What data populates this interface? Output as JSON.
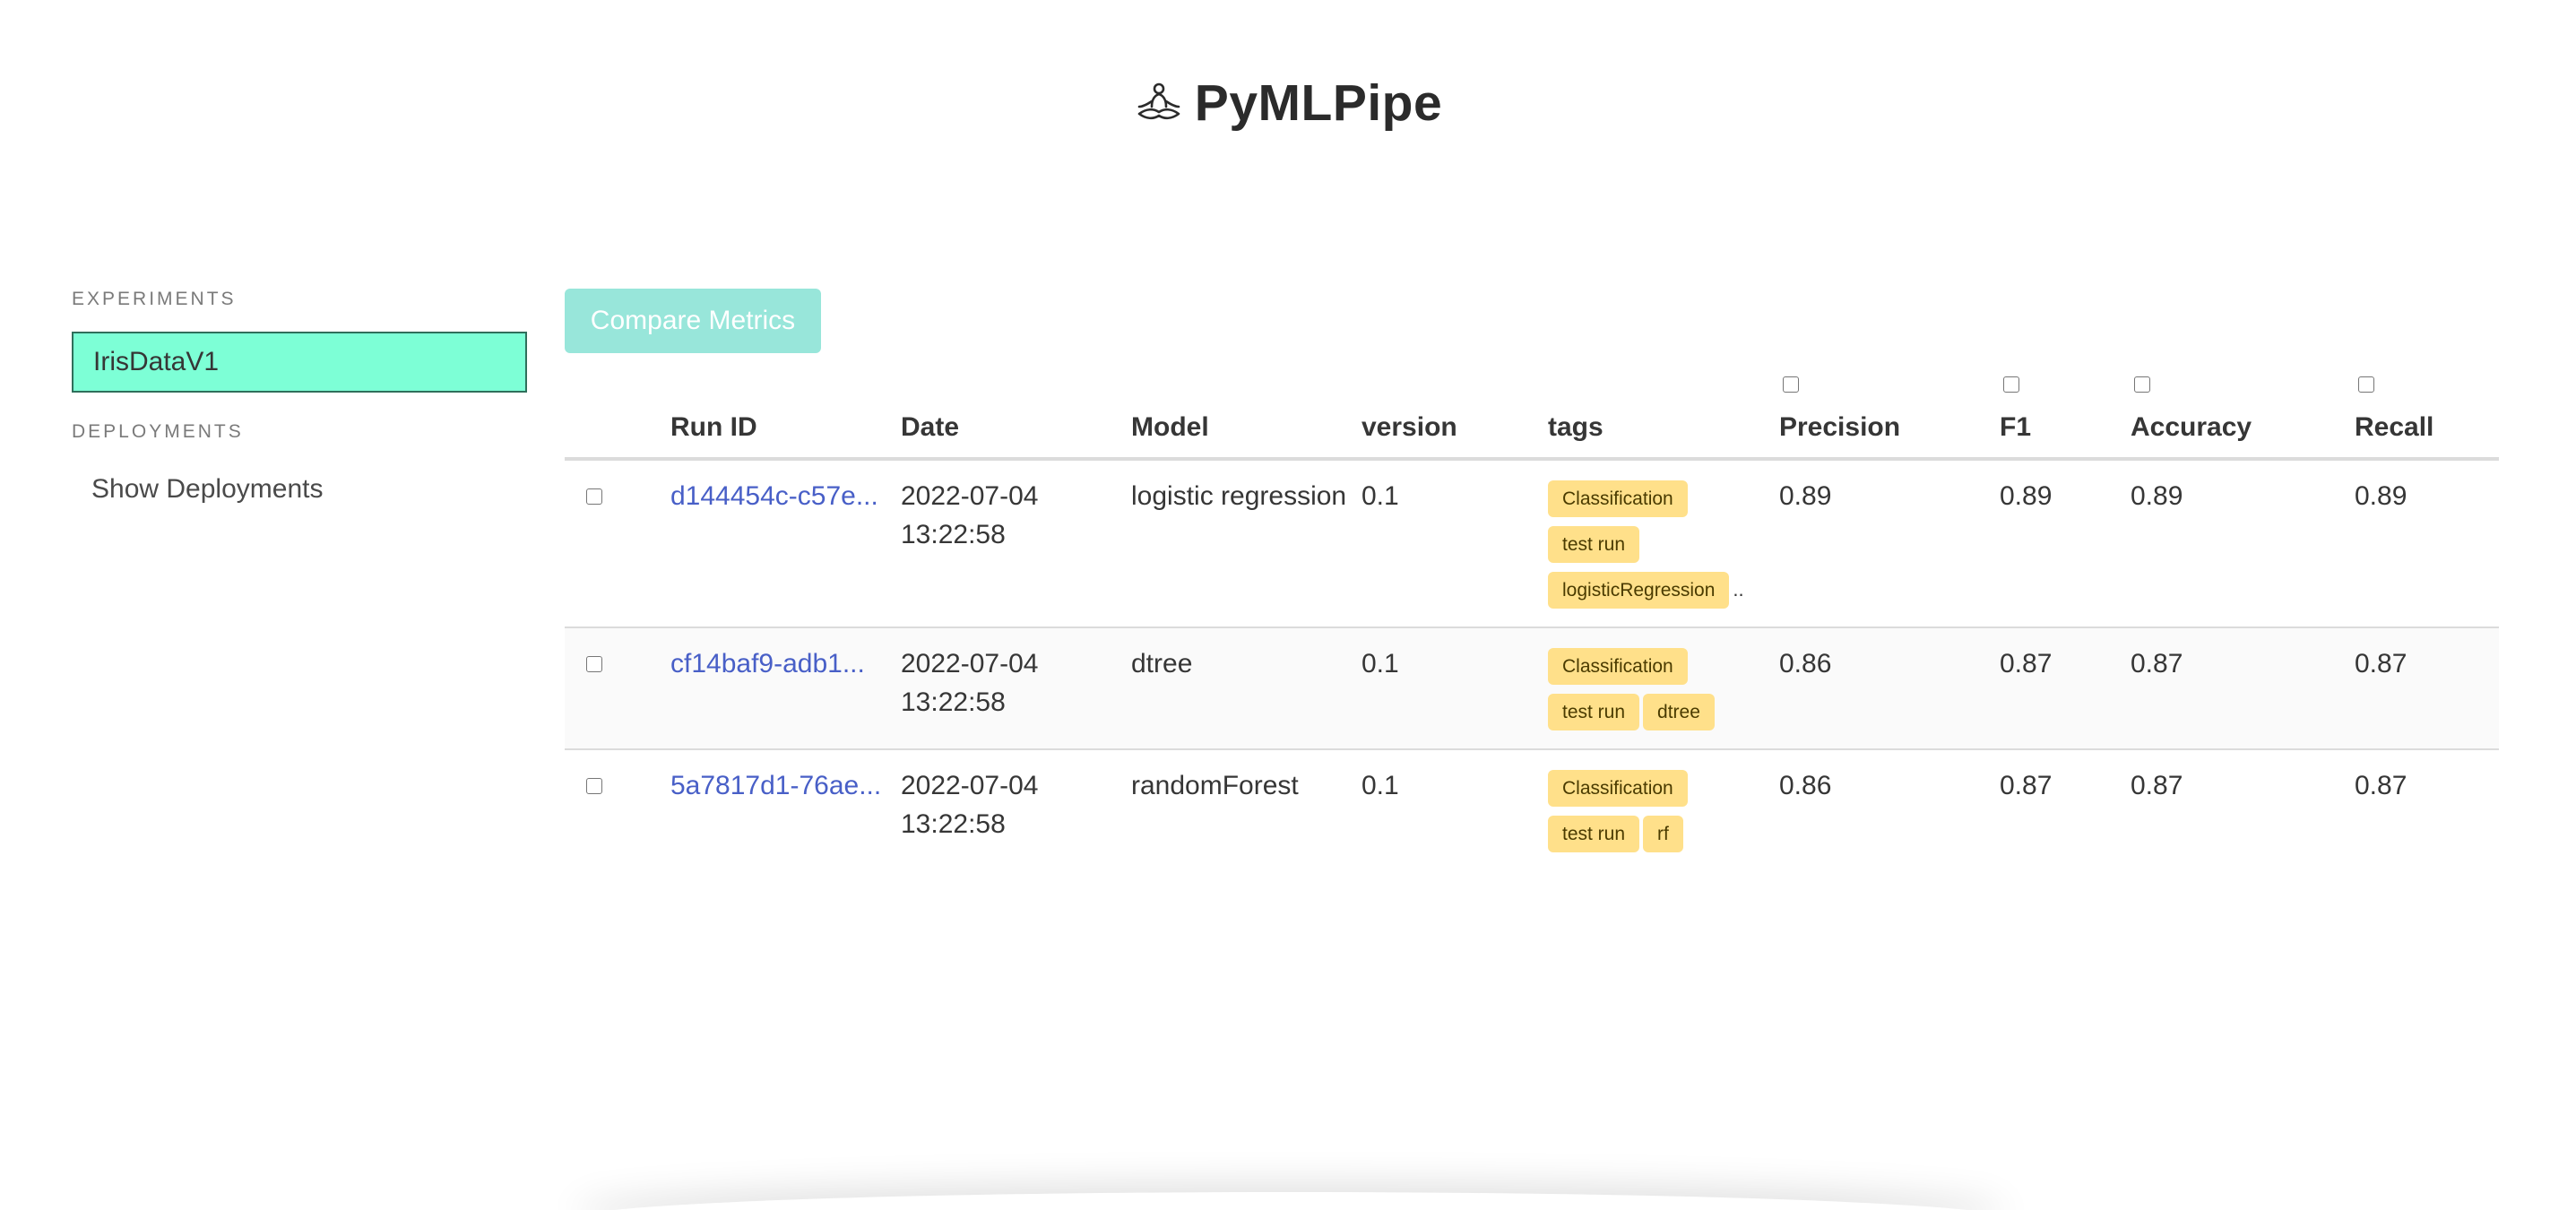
{
  "header": {
    "title": "PyMLPipe",
    "logo_icon": "meditation-figure-icon"
  },
  "sidebar": {
    "experiments_label": "EXPERIMENTS",
    "experiments": [
      {
        "label": "IrisDataV1",
        "active": true
      }
    ],
    "deployments_label": "DEPLOYMENTS",
    "deployments": [
      {
        "label": "Show Deployments"
      }
    ]
  },
  "toolbar": {
    "compare_label": "Compare Metrics"
  },
  "table": {
    "columns": {
      "run_id": "Run ID",
      "date": "Date",
      "model": "Model",
      "version": "version",
      "tags": "tags",
      "precision": "Precision",
      "f1": "F1",
      "accuracy": "Accuracy",
      "recall": "Recall"
    },
    "rows": [
      {
        "run_id": "d144454c-c57e...",
        "date": "2022-07-04 13:22:58",
        "model": "logistic regression",
        "version": "0.1",
        "tags": [
          "Classification",
          "test run",
          "logisticRegression"
        ],
        "tags_truncated": "..",
        "precision": "0.89",
        "f1": "0.89",
        "accuracy": "0.89",
        "recall": "0.89"
      },
      {
        "run_id": "cf14baf9-adb1...",
        "date": "2022-07-04 13:22:58",
        "model": "dtree",
        "version": "0.1",
        "tags": [
          "Classification",
          "test run",
          "dtree"
        ],
        "precision": "0.86",
        "f1": "0.87",
        "accuracy": "0.87",
        "recall": "0.87"
      },
      {
        "run_id": "5a7817d1-76ae...",
        "date": "2022-07-04 13:22:58",
        "model": "randomForest",
        "version": "0.1",
        "tags": [
          "Classification",
          "test run",
          "rf"
        ],
        "precision": "0.86",
        "f1": "0.87",
        "accuracy": "0.87",
        "recall": "0.87"
      }
    ]
  },
  "colors": {
    "accent": "#7dffd6",
    "button": "#98e6da",
    "link": "#485fc7",
    "tag": "#ffe08a"
  }
}
